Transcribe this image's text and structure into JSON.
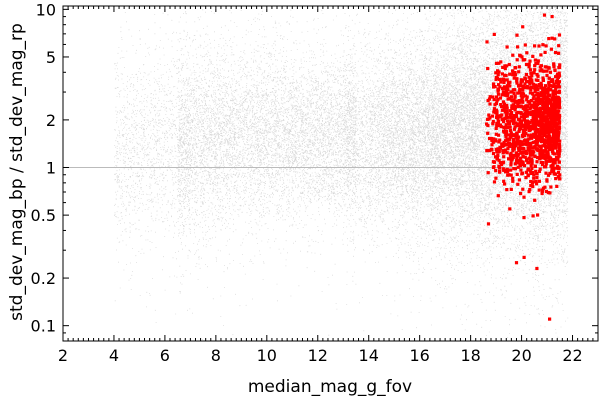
{
  "chart_data": {
    "type": "scatter",
    "title": "",
    "xlabel": "median_mag_g_fov",
    "ylabel": "std_dev_mag_bp / std_dev_mag_rp",
    "xlim": [
      2,
      23
    ],
    "ylim": [
      0.08,
      10.5
    ],
    "y_scale": "log",
    "grid": false,
    "legend": "none",
    "x_ticks": [
      2,
      4,
      6,
      8,
      10,
      12,
      14,
      16,
      18,
      20,
      22
    ],
    "x_tick_labels": [
      "2",
      "4",
      "6",
      "8",
      "10",
      "12",
      "14",
      "16",
      "18",
      "20",
      "22"
    ],
    "y_ticks": [
      0.1,
      0.2,
      0.5,
      1,
      2,
      5,
      10
    ],
    "y_tick_labels": [
      "0.1",
      "0.2",
      "0.5",
      "1",
      "2",
      "5",
      "10"
    ],
    "reference_line_y": 1,
    "colors": {
      "background_points": "#404040",
      "highlight_points": "#ff0000",
      "reference_line": "#bbbbbb",
      "axis": "#000000"
    },
    "series": [
      {
        "style": "grey-density",
        "density_ridge": [
          {
            "x": 6.5,
            "y_center": 1.4,
            "y_spread": 0.3
          },
          {
            "x": 8.0,
            "y_center": 1.55,
            "y_spread": 0.27
          },
          {
            "x": 9.5,
            "y_center": 1.6,
            "y_spread": 0.27
          },
          {
            "x": 10.0,
            "y_center": 1.75,
            "y_spread": 0.29
          },
          {
            "x": 11.0,
            "y_center": 1.6,
            "y_spread": 0.24
          },
          {
            "x": 12.0,
            "y_center": 1.6,
            "y_spread": 0.24
          },
          {
            "x": 14.0,
            "y_center": 1.55,
            "y_spread": 0.27
          },
          {
            "x": 16.0,
            "y_center": 1.6,
            "y_spread": 0.3
          },
          {
            "x": 18.0,
            "y_center": 1.8,
            "y_spread": 0.33
          },
          {
            "x": 20.0,
            "y_center": 2.0,
            "y_spread": 0.37
          },
          {
            "x": 21.5,
            "y_center": 2.2,
            "y_spread": 0.4
          }
        ]
      },
      {
        "style": "red-highlight",
        "x_range": [
          18.6,
          21.5
        ],
        "y_median": 1.9,
        "y_range": [
          0.11,
          10
        ],
        "sample_points": [
          {
            "x": 18.7,
            "y": 0.44
          },
          {
            "x": 19.0,
            "y": 3.6
          },
          {
            "x": 19.5,
            "y": 0.9
          },
          {
            "x": 19.8,
            "y": 0.25
          },
          {
            "x": 20.1,
            "y": 0.27
          },
          {
            "x": 20.3,
            "y": 4.5
          },
          {
            "x": 20.6,
            "y": 0.23
          },
          {
            "x": 20.9,
            "y": 9.2
          },
          {
            "x": 21.1,
            "y": 0.11
          },
          {
            "x": 21.2,
            "y": 9.0
          },
          {
            "x": 21.3,
            "y": 6.5
          }
        ]
      }
    ]
  }
}
